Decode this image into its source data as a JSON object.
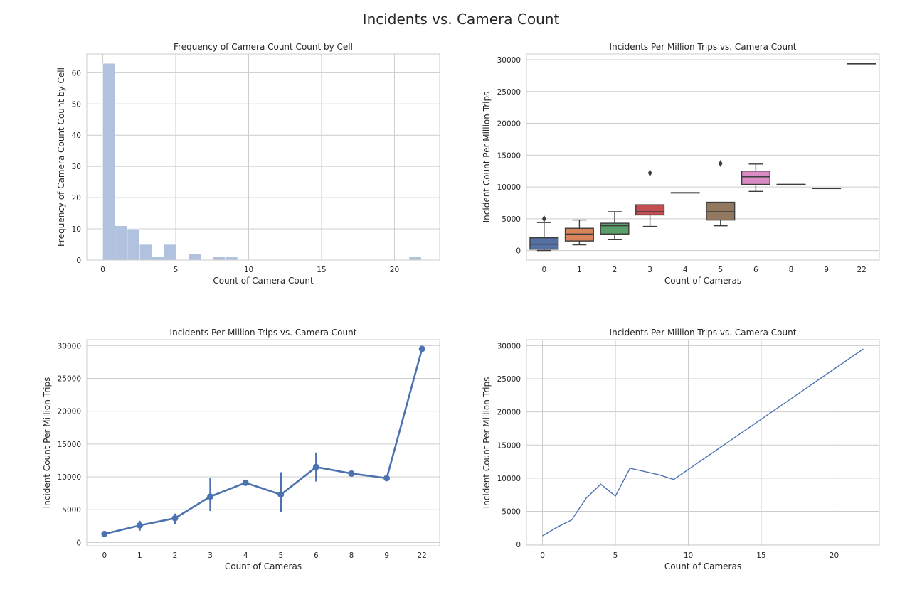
{
  "figure": {
    "title": "Incidents vs. Camera Count"
  },
  "chart_data": [
    {
      "type": "bar",
      "title": "Frequency of Camera Count Count by Cell",
      "xlabel": "Count of Camera Count",
      "ylabel": "Frequency of Camera Count Count by Cell",
      "xlim": [
        -1.1,
        23.1
      ],
      "ylim": [
        0,
        66
      ],
      "xticks": [
        0,
        5,
        10,
        15,
        20
      ],
      "yticks": [
        0,
        10,
        20,
        30,
        40,
        50,
        60
      ],
      "bins": [
        {
          "x0": 0,
          "x1": 0.84,
          "count": 63
        },
        {
          "x0": 0.84,
          "x1": 1.68,
          "count": 11
        },
        {
          "x0": 1.68,
          "x1": 2.52,
          "count": 10
        },
        {
          "x0": 2.52,
          "x1": 3.36,
          "count": 5
        },
        {
          "x0": 3.36,
          "x1": 4.2,
          "count": 1
        },
        {
          "x0": 4.2,
          "x1": 5.04,
          "count": 5
        },
        {
          "x0": 5.88,
          "x1": 6.72,
          "count": 2
        },
        {
          "x0": 7.56,
          "x1": 8.4,
          "count": 1
        },
        {
          "x0": 8.4,
          "x1": 9.24,
          "count": 1
        },
        {
          "x0": 21.0,
          "x1": 21.84,
          "count": 1
        }
      ],
      "color": "#b0c2dd",
      "grid": true
    },
    {
      "type": "box",
      "title": "Incidents Per Million Trips vs. Camera Count",
      "xlabel": "Count of Cameras",
      "ylabel": "Incident Count Per Million Trips",
      "ylim": [
        -1500,
        30900
      ],
      "yticks": [
        0,
        5000,
        10000,
        15000,
        20000,
        25000,
        30000
      ],
      "categories": [
        "0",
        "1",
        "2",
        "3",
        "4",
        "5",
        "6",
        "8",
        "9",
        "22"
      ],
      "boxes": [
        {
          "lo": 0,
          "q1": 200,
          "med": 1000,
          "q3": 2000,
          "hi": 4400,
          "color": "#5470a5",
          "outliers": [
            5000
          ]
        },
        {
          "lo": 900,
          "q1": 1500,
          "med": 2600,
          "q3": 3500,
          "hi": 4800,
          "color": "#d8845a",
          "outliers": []
        },
        {
          "lo": 1700,
          "q1": 2600,
          "med": 3900,
          "q3": 4300,
          "hi": 6100,
          "color": "#5a9e6a",
          "outliers": []
        },
        {
          "lo": 3800,
          "q1": 5600,
          "med": 6100,
          "q3": 7200,
          "hi": 7200,
          "color": "#c44e52",
          "outliers": [
            12200
          ]
        },
        {
          "lo": 9100,
          "q1": 9100,
          "med": 9100,
          "q3": 9100,
          "hi": 9100,
          "color": "#8172b2",
          "outliers": []
        },
        {
          "lo": 3900,
          "q1": 4800,
          "med": 6100,
          "q3": 7600,
          "hi": 7600,
          "color": "#937860",
          "outliers": [
            13700
          ]
        },
        {
          "lo": 9300,
          "q1": 10400,
          "med": 11600,
          "q3": 12500,
          "hi": 13600,
          "color": "#da8bc3",
          "outliers": []
        },
        {
          "lo": 10400,
          "q1": 10400,
          "med": 10400,
          "q3": 10400,
          "hi": 10400,
          "color": "#8c8c8c",
          "outliers": []
        },
        {
          "lo": 9800,
          "q1": 9800,
          "med": 9800,
          "q3": 9800,
          "hi": 9800,
          "color": "#ccb974",
          "outliers": []
        },
        {
          "lo": 29400,
          "q1": 29400,
          "med": 29400,
          "q3": 29400,
          "hi": 29400,
          "color": "#64b5cd",
          "outliers": []
        }
      ],
      "grid": true
    },
    {
      "type": "line",
      "title": "Incidents Per Million Trips vs. Camera Count",
      "xlabel": "Count of Cameras",
      "ylabel": "Incident Count Per Million Trips",
      "ylim": [
        -500,
        30900
      ],
      "yticks": [
        0,
        5000,
        10000,
        15000,
        20000,
        25000,
        30000
      ],
      "categories": [
        "0",
        "1",
        "2",
        "3",
        "4",
        "5",
        "6",
        "8",
        "9",
        "22"
      ],
      "series": [
        {
          "values": [
            1300,
            2600,
            3700,
            7000,
            9100,
            7300,
            11500,
            10500,
            9800,
            29500
          ],
          "err_lo": [
            1000,
            1800,
            2800,
            4800,
            9100,
            4600,
            9300,
            10500,
            9800,
            29500
          ],
          "err_hi": [
            1600,
            3300,
            4400,
            9800,
            9100,
            10700,
            13700,
            10500,
            9800,
            29500
          ]
        }
      ],
      "color": "#4c72b0",
      "grid": true
    },
    {
      "type": "line",
      "title": "Incidents Per Million Trips vs. Camera Count",
      "xlabel": "Count of Cameras",
      "ylabel": "Incident Count Per Million Trips",
      "xlim": [
        -1.1,
        23.1
      ],
      "ylim": [
        -200,
        30900
      ],
      "xticks": [
        0,
        5,
        10,
        15,
        20
      ],
      "yticks": [
        0,
        5000,
        10000,
        15000,
        20000,
        25000,
        30000
      ],
      "x": [
        0,
        1,
        2,
        3,
        4,
        5,
        6,
        8,
        9,
        22
      ],
      "y": [
        1300,
        2600,
        3700,
        7000,
        9100,
        7300,
        11500,
        10500,
        9800,
        29500
      ],
      "color": "#4c72b0",
      "grid": true
    }
  ]
}
